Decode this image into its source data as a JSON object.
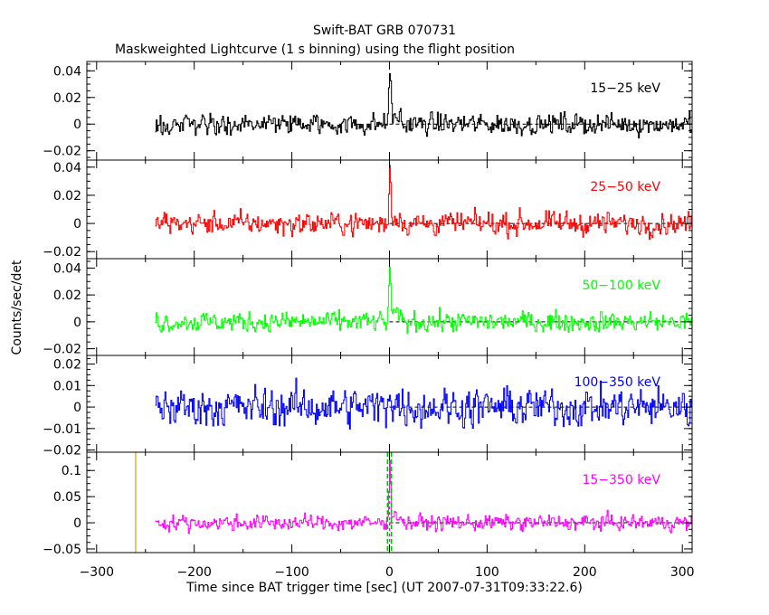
{
  "chart_data": {
    "type": "line",
    "title": "Swift-BAT GRB 070731",
    "subtitle": "Maskweighted Lightcurve (1 s binning) using the flight position",
    "xlabel": "Time since BAT trigger time [sec] (UT 2007-07-31T09:33:22.6)",
    "ylabel": "Counts/sec/det",
    "xlim": [
      -310,
      310
    ],
    "x_ticks": [
      -300,
      -200,
      -100,
      0,
      100,
      200,
      300
    ],
    "x_tick_labels": [
      "−300",
      "−200",
      "−100",
      "0",
      "100",
      "200",
      "300"
    ],
    "data_start": -240,
    "data_end": 310,
    "markers": {
      "pre_window_line": -260,
      "t90_start": -2,
      "t90_end": 2,
      "trigger": 0
    },
    "panels": [
      {
        "name": "15-25 keV",
        "label": "15−25 keV",
        "color": "#000000",
        "ylim": [
          -0.027,
          0.047
        ],
        "y_ticks": [
          -0.02,
          0,
          0.02,
          0.04
        ],
        "y_tick_labels": [
          "−0.02",
          "0",
          "0.02",
          "0.04"
        ],
        "noise_sigma": 0.0075,
        "peak": 0.045
      },
      {
        "name": "25-50 keV",
        "label": "25−50 keV",
        "color": "#ff0000",
        "ylim": [
          -0.025,
          0.045
        ],
        "y_ticks": [
          -0.02,
          0,
          0.02,
          0.04
        ],
        "y_tick_labels": [
          "−0.02",
          "0",
          "0.02",
          "0.04"
        ],
        "noise_sigma": 0.0075,
        "peak": 0.04
      },
      {
        "name": "50-100 keV",
        "label": "50−100 keV",
        "color": "#00ff00",
        "ylim": [
          -0.025,
          0.047
        ],
        "y_ticks": [
          -0.02,
          0,
          0.02,
          0.04
        ],
        "y_tick_labels": [
          "−0.02",
          "0",
          "0.02",
          "0.04"
        ],
        "noise_sigma": 0.007,
        "peak": 0.042
      },
      {
        "name": "100-350 keV",
        "label": "100−350 keV",
        "color": "#0000ff",
        "ylim": [
          -0.021,
          0.024
        ],
        "y_ticks": [
          -0.02,
          -0.01,
          0,
          0.01,
          0.02
        ],
        "y_tick_labels": [
          "−0.02",
          "−0.01",
          "0",
          "0.01",
          "0.02"
        ],
        "noise_sigma": 0.0085,
        "peak": 0.012
      },
      {
        "name": "15-350 keV",
        "label": "15−350 keV",
        "color": "#ff00ff",
        "ylim": [
          -0.057,
          0.135
        ],
        "y_ticks": [
          -0.05,
          0,
          0.05,
          0.1
        ],
        "y_tick_labels": [
          "−0.05",
          "0",
          "0.05",
          "0.1"
        ],
        "noise_sigma": 0.014,
        "peak": 0.125
      }
    ]
  }
}
